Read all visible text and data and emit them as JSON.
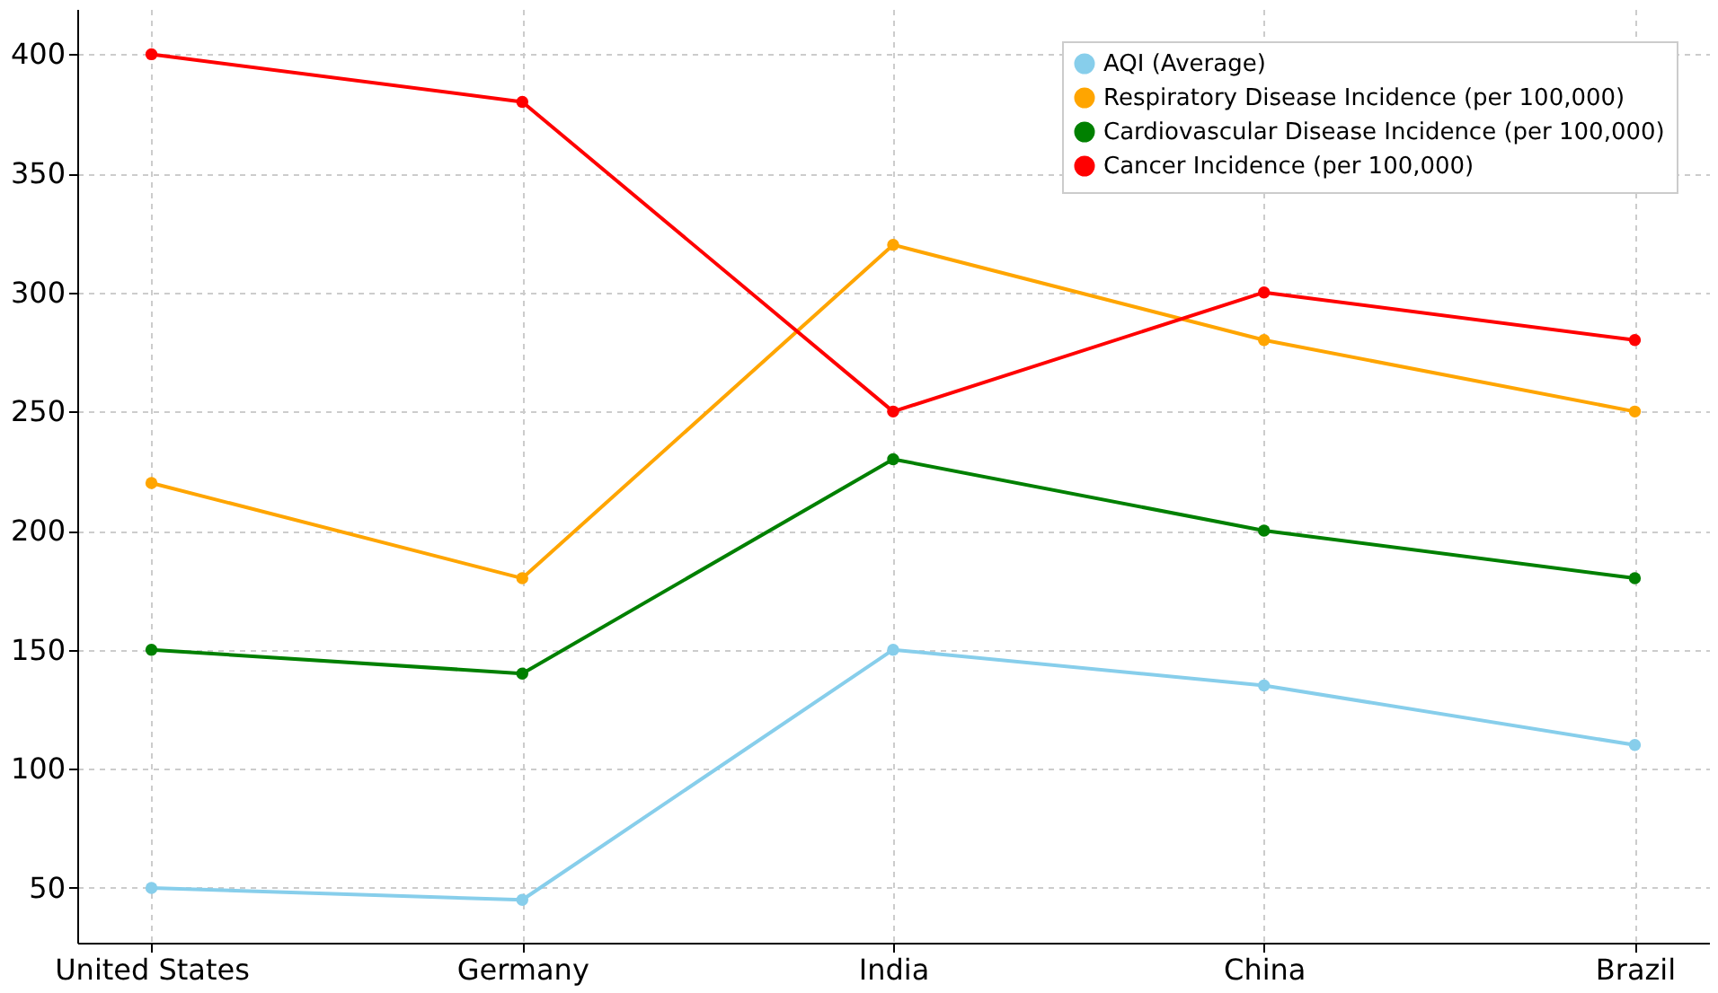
{
  "chart_data": {
    "type": "line",
    "categories": [
      "United States",
      "Germany",
      "India",
      "China",
      "Brazil"
    ],
    "series": [
      {
        "name": "AQI (Average)",
        "color": "#87ceeb",
        "values": [
          50,
          45,
          150,
          135,
          110
        ]
      },
      {
        "name": "Respiratory Disease Incidence (per 100,000)",
        "color": "#ffa500",
        "values": [
          220,
          180,
          320,
          280,
          250
        ]
      },
      {
        "name": "Cardiovascular Disease Incidence (per 100,000)",
        "color": "#008000",
        "values": [
          150,
          140,
          230,
          200,
          180
        ]
      },
      {
        "name": "Cancer Incidence (per 100,000)",
        "color": "#ff0000",
        "values": [
          400,
          380,
          250,
          300,
          280
        ]
      }
    ],
    "ylim": [
      27,
      419
    ],
    "yticks": [
      50,
      100,
      150,
      200,
      250,
      300,
      350,
      400
    ],
    "grid": true,
    "legend": "top right",
    "marker": "circle",
    "line_style": "solid"
  }
}
